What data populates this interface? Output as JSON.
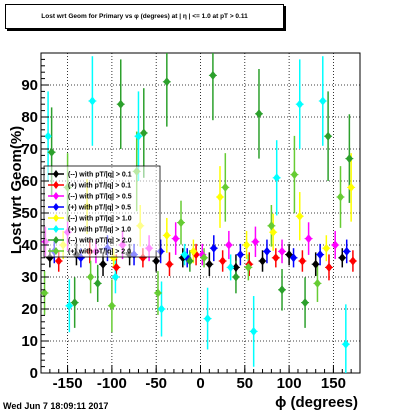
{
  "title": "Lost wrt Geom for Primary vs φ (degrees) at | η | <= 1.0 at pT > 0.11",
  "timestamp": "Wed Jun  7 18:09:11 2017",
  "chart_data": {
    "type": "scatter",
    "xlabel": "ϕ (degrees)",
    "ylabel": "Lost  wrt  Geom(%)",
    "xlim": [
      -180,
      180
    ],
    "ylim": [
      0,
      100
    ],
    "x_ticks": [
      -150,
      -100,
      -50,
      0,
      50,
      100,
      150
    ],
    "y_ticks": [
      0,
      10,
      20,
      30,
      40,
      50,
      60,
      70,
      80,
      90
    ],
    "grid": true,
    "legend_position": "left-middle",
    "series": [
      {
        "name": "(--) with pT/|q| > 0.1",
        "color": "#000000",
        "x": [
          -170,
          -140,
          -110,
          -80,
          -50,
          -20,
          10,
          40,
          70,
          100,
          130,
          160
        ],
        "y": [
          36,
          37,
          34,
          37,
          35,
          36,
          34,
          33,
          35,
          37,
          34,
          36
        ]
      },
      {
        "name": "(+) with pT/|q| > 0.1",
        "color": "#ff0000",
        "x": [
          -160,
          -125,
          -95,
          -65,
          -35,
          -5,
          25,
          55,
          85,
          115,
          145,
          172
        ],
        "y": [
          35,
          38,
          33,
          36,
          34,
          37,
          35,
          34,
          36,
          35,
          33,
          35
        ]
      },
      {
        "name": "(--) with pT/|q| > 0.5",
        "color": "#ff00ff",
        "x": [
          -175,
          -150,
          -118,
          -88,
          -58,
          -28,
          2,
          32,
          62,
          92,
          122,
          152
        ],
        "y": [
          41,
          44,
          38,
          40,
          39,
          42,
          37,
          40,
          41,
          38,
          42,
          40
        ]
      },
      {
        "name": "(+) with pT/|q| > 0.5",
        "color": "#0000ff",
        "x": [
          -165,
          -135,
          -105,
          -75,
          -45,
          -15,
          15,
          45,
          75,
          105,
          135,
          165
        ],
        "y": [
          38,
          36,
          39,
          37,
          38,
          36,
          39,
          37,
          38,
          36,
          37,
          38
        ]
      },
      {
        "name": "(--) with pT/|q| > 1.0",
        "color": "#ffff00",
        "x": [
          -155,
          -128,
          -98,
          -68,
          -38,
          -8,
          22,
          52,
          82,
          112,
          142,
          170
        ],
        "y": [
          40,
          52,
          36,
          46,
          43,
          38,
          55,
          40,
          44,
          49,
          39,
          58
        ]
      },
      {
        "name": "(+) with pT/|q| > 1.0",
        "color": "#00ffff",
        "x": [
          -172,
          -148,
          -122,
          -96,
          -70,
          -44,
          -18,
          8,
          34,
          60,
          86,
          112,
          138,
          164
        ],
        "y": [
          74,
          21,
          85,
          30,
          74,
          20,
          37,
          17,
          33,
          13,
          61,
          84,
          85,
          9
        ]
      },
      {
        "name": "(--) with pT/|q| > 2.0",
        "color": "#2ca02c",
        "x": [
          -168,
          -142,
          -116,
          -90,
          -64,
          -38,
          -12,
          14,
          40,
          66,
          92,
          118,
          144,
          168
        ],
        "y": [
          69,
          22,
          28,
          84,
          75,
          91,
          35,
          93,
          30,
          81,
          26,
          22,
          74,
          67
        ]
      },
      {
        "name": "(+) with pT/|q| > 2.0",
        "color": "#66cc33",
        "x": [
          -176,
          -150,
          -124,
          -100,
          -72,
          -48,
          -22,
          4,
          28,
          54,
          80,
          106,
          132,
          158
        ],
        "y": [
          25,
          58,
          30,
          21,
          63,
          25,
          47,
          36,
          58,
          33,
          46,
          62,
          28,
          55
        ]
      }
    ]
  }
}
